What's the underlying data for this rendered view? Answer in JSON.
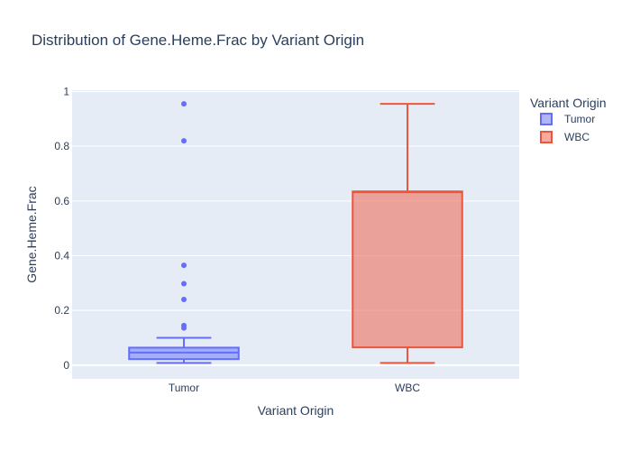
{
  "chart_data": {
    "type": "box",
    "title": "Distribution of Gene.Heme.Frac by Variant Origin",
    "xlabel": "Variant Origin",
    "ylabel": "Gene.Heme.Frac",
    "ylim": [
      -0.05,
      1.005
    ],
    "yticks": [
      0,
      0.2,
      0.4,
      0.6,
      0.8,
      1
    ],
    "ytick_labels": [
      "0",
      "0.2",
      "0.4",
      "0.6",
      "0.8",
      "1"
    ],
    "categories": [
      "Tumor",
      "WBC"
    ],
    "legend": {
      "title": "Variant Origin",
      "position": "top-right"
    },
    "grid": true,
    "series": [
      {
        "name": "Tumor",
        "color": "#636efa",
        "lowerfence": 0.008,
        "q1": 0.022,
        "median": 0.046,
        "q3": 0.064,
        "upperfence": 0.1,
        "outliers": [
          0.955,
          0.82,
          0.365,
          0.298,
          0.24,
          0.145,
          0.136
        ]
      },
      {
        "name": "WBC",
        "color": "#ef553b",
        "lowerfence": 0.008,
        "q1": 0.065,
        "median": 0.632,
        "q3": 0.635,
        "upperfence": 0.955,
        "outliers": []
      }
    ]
  }
}
